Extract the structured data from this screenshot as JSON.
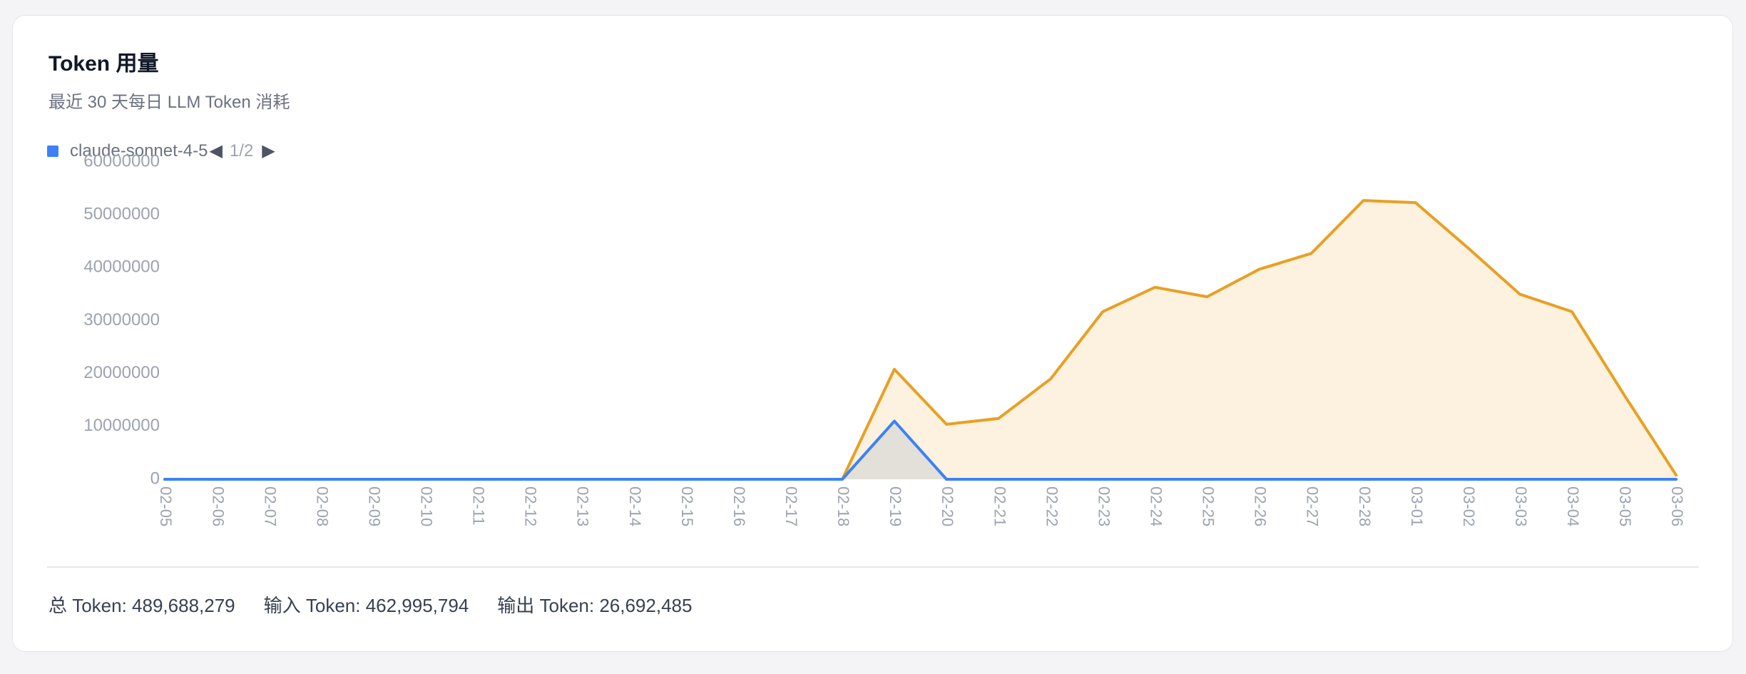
{
  "card": {
    "title": "Token 用量",
    "subtitle": "最近 30 天每日 LLM Token 消耗"
  },
  "legend": {
    "label": "claude-sonnet-4-5",
    "prev_icon": "◀",
    "page": "1/2",
    "next_icon": "▶"
  },
  "totals": {
    "total": "总 Token: 489,688,279",
    "input": "输入 Token: 462,995,794",
    "output": "输出 Token: 26,692,485"
  },
  "chart_data": {
    "type": "area",
    "categories": [
      "02-05",
      "02-06",
      "02-07",
      "02-08",
      "02-09",
      "02-10",
      "02-11",
      "02-12",
      "02-13",
      "02-14",
      "02-15",
      "02-16",
      "02-17",
      "02-18",
      "02-19",
      "02-20",
      "02-21",
      "02-22",
      "02-23",
      "02-24",
      "02-25",
      "02-26",
      "02-27",
      "02-28",
      "03-01",
      "03-02",
      "03-03",
      "03-04",
      "03-05",
      "03-06"
    ],
    "yticks": [
      "0",
      "10000000",
      "20000000",
      "30000000",
      "40000000",
      "50000000",
      "60000000"
    ],
    "ylim": [
      0,
      60000000
    ],
    "series": [
      {
        "name": "claude-sonnet-4-5",
        "color": "#3b82f6",
        "fill": "#e3e0da",
        "values": [
          0,
          0,
          0,
          0,
          0,
          0,
          0,
          0,
          0,
          0,
          0,
          0,
          0,
          0,
          11000000,
          0,
          0,
          0,
          0,
          0,
          0,
          0,
          0,
          0,
          0,
          0,
          0,
          0,
          0,
          0
        ]
      },
      {
        "color": "#e8a023",
        "fill": "#fdf1df",
        "values": [
          0,
          0,
          0,
          0,
          0,
          0,
          0,
          0,
          0,
          0,
          0,
          0,
          0,
          0,
          20800000,
          10400000,
          11500000,
          19000000,
          31700000,
          36300000,
          34500000,
          39700000,
          42700000,
          52700000,
          52300000,
          43800000,
          35000000,
          31700000,
          16000000,
          800000
        ]
      }
    ],
    "grid": false,
    "legend_position": "top-left"
  }
}
